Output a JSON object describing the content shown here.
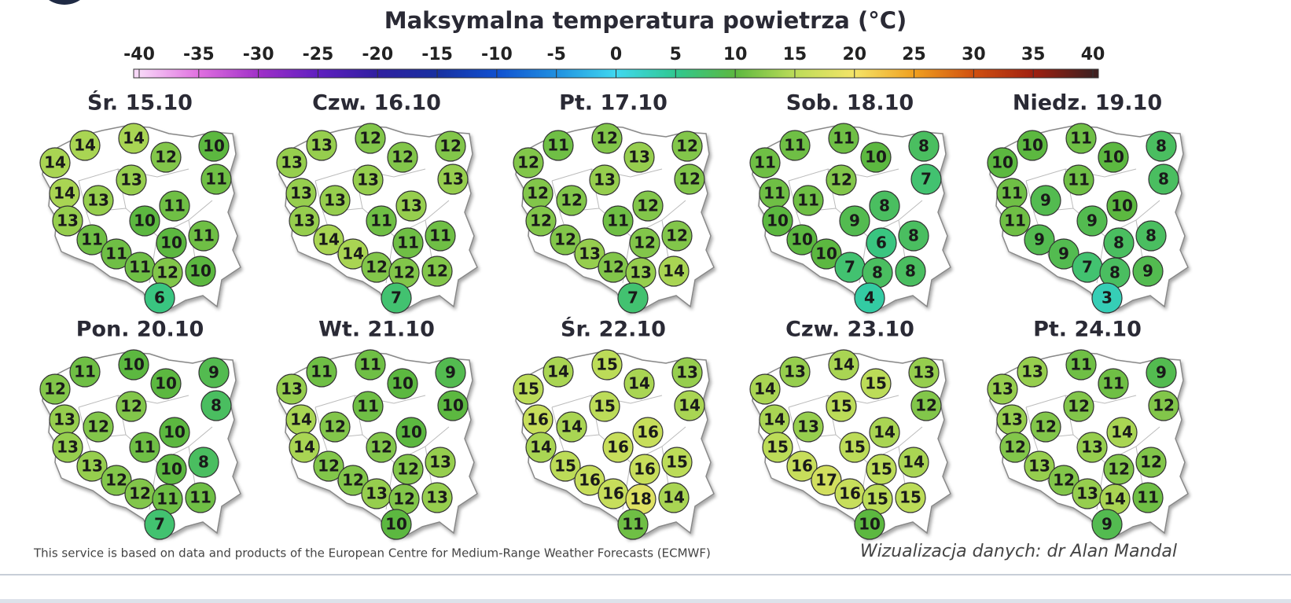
{
  "title": "Maksymalna temperatura powietrza (°C)",
  "colorbar": {
    "ticks": [
      -40,
      -35,
      -30,
      -25,
      -20,
      -15,
      -10,
      -5,
      0,
      5,
      10,
      15,
      20,
      25,
      30,
      35,
      40
    ],
    "colors": [
      "#f8d8f8",
      "#e070e0",
      "#a030c8",
      "#6020c0",
      "#3020a0",
      "#1830a0",
      "#1050d0",
      "#2090e0",
      "#40d8f0",
      "#30c890",
      "#5cb840",
      "#bcdc58",
      "#f4e468",
      "#f0a020",
      "#d05010",
      "#a02010",
      "#402020"
    ]
  },
  "panels": [
    {
      "date": "Śr. 15.10",
      "values": [
        14,
        14,
        14,
        12,
        10,
        11,
        14,
        13,
        13,
        11,
        13,
        10,
        11,
        10,
        11,
        11,
        11,
        12,
        10,
        6
      ]
    },
    {
      "date": "Czw. 16.10",
      "values": [
        13,
        12,
        13,
        12,
        12,
        13,
        13,
        13,
        13,
        13,
        13,
        11,
        14,
        11,
        11,
        14,
        12,
        12,
        12,
        7
      ]
    },
    {
      "date": "Pt. 17.10",
      "values": [
        11,
        12,
        12,
        13,
        12,
        12,
        12,
        12,
        13,
        12,
        12,
        11,
        12,
        12,
        12,
        13,
        12,
        13,
        14,
        7
      ]
    },
    {
      "date": "Sob. 18.10",
      "values": [
        11,
        11,
        11,
        10,
        8,
        7,
        11,
        11,
        12,
        8,
        10,
        9,
        10,
        6,
        8,
        10,
        7,
        8,
        8,
        4
      ]
    },
    {
      "date": "Niedz. 19.10",
      "values": [
        10,
        11,
        10,
        10,
        8,
        8,
        11,
        9,
        11,
        10,
        11,
        9,
        9,
        8,
        8,
        9,
        7,
        8,
        9,
        3
      ]
    },
    {
      "date": "Pon. 20.10",
      "values": [
        11,
        10,
        12,
        10,
        9,
        8,
        13,
        12,
        12,
        10,
        13,
        11,
        13,
        10,
        8,
        12,
        12,
        11,
        11,
        7
      ]
    },
    {
      "date": "Wt. 21.10",
      "values": [
        11,
        11,
        13,
        10,
        9,
        10,
        14,
        12,
        11,
        10,
        14,
        12,
        12,
        12,
        13,
        12,
        13,
        12,
        13,
        10
      ]
    },
    {
      "date": "Śr. 22.10",
      "values": [
        14,
        15,
        15,
        14,
        13,
        14,
        16,
        14,
        15,
        16,
        14,
        16,
        15,
        16,
        15,
        16,
        16,
        18,
        14,
        11
      ]
    },
    {
      "date": "Czw. 23.10",
      "values": [
        13,
        14,
        14,
        15,
        13,
        12,
        14,
        13,
        15,
        14,
        15,
        15,
        16,
        15,
        14,
        17,
        16,
        15,
        15,
        10
      ]
    },
    {
      "date": "Pt. 24.10",
      "values": [
        13,
        11,
        13,
        11,
        9,
        12,
        13,
        12,
        12,
        14,
        12,
        13,
        13,
        12,
        12,
        12,
        13,
        14,
        11,
        9
      ]
    }
  ],
  "footer": {
    "source": "This service is based on data and products of the European Centre for Medium-Range Weather Forecasts (ECMWF)",
    "credit": "Wizualizacja danych: dr Alan Mandal"
  }
}
